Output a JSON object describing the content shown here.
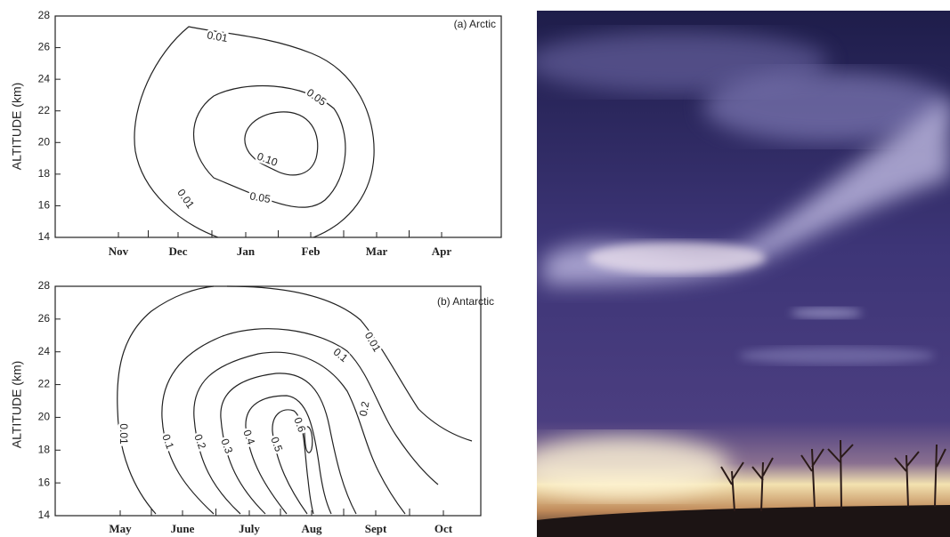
{
  "chart_data": [
    {
      "type": "contour",
      "annotation": "(a) Arctic",
      "ylabel": "ALTITUDE (km)",
      "categories": [
        "Nov",
        "Dec",
        "Jan",
        "Feb",
        "Mar",
        "Apr"
      ],
      "ylim": [
        14,
        28
      ],
      "yticks": [
        14,
        16,
        18,
        20,
        22,
        24,
        26,
        28
      ],
      "levels": [
        0.01,
        0.05,
        0.1
      ],
      "value_labels": [
        "0.01",
        "0.05",
        "0.10"
      ]
    },
    {
      "type": "contour",
      "annotation": "(b) Antarctic",
      "ylabel": "ALTITUDE (km)",
      "categories": [
        "May",
        "June",
        "July",
        "Aug",
        "Sept",
        "Oct"
      ],
      "ylim": [
        14,
        28
      ],
      "yticks": [
        14,
        16,
        18,
        20,
        22,
        24,
        26,
        28
      ],
      "levels": [
        0.01,
        0.1,
        0.2,
        0.3,
        0.4,
        0.5,
        0.6
      ]
    }
  ]
}
